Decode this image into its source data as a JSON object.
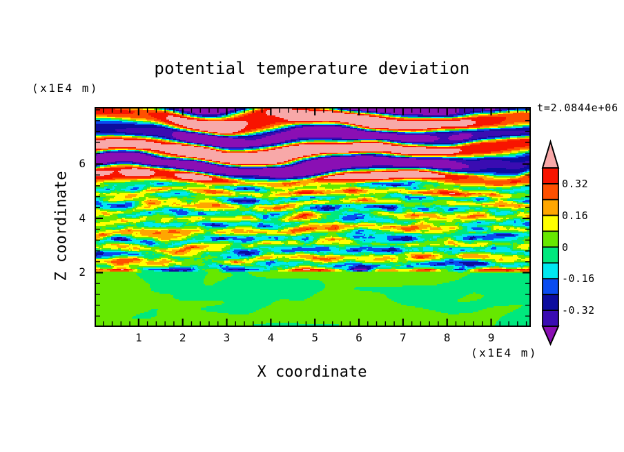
{
  "title": "potential temperature deviation",
  "time_label": "t=2.0844e+06",
  "x_axis": {
    "label": "X coordinate",
    "unit": "(x1E4 m)",
    "tick_labels": [
      "1",
      "2",
      "3",
      "4",
      "5",
      "6",
      "7",
      "8",
      "9"
    ],
    "major_ticks": [
      1,
      2,
      3,
      4,
      5,
      6,
      7,
      8,
      9
    ],
    "minor_step": 0.2,
    "range": [
      0,
      9.9
    ]
  },
  "z_axis": {
    "label": "Z coordinate",
    "unit": "(x1E4 m)",
    "tick_labels": [
      "2",
      "4",
      "6"
    ],
    "major_ticks": [
      2,
      4,
      6
    ],
    "minor_step": 0.4,
    "range": [
      0,
      8.1
    ]
  },
  "colorbar": {
    "tick_labels": [
      {
        "value": 0.32,
        "text": "0.32"
      },
      {
        "value": 0.16,
        "text": "0.16"
      },
      {
        "value": 0,
        "text": "0"
      },
      {
        "value": -0.16,
        "text": "-0.16"
      },
      {
        "value": -0.32,
        "text": "-0.32"
      }
    ]
  },
  "chart_data": {
    "type": "heatmap",
    "title": "potential temperature deviation",
    "xlabel": "X coordinate",
    "ylabel": "Z coordinate",
    "x_unit": "(x1E4 m)",
    "z_unit": "(x1E4 m)",
    "time_annotation": "t=2.0844e+06",
    "x_range": [
      0,
      9.9
    ],
    "z_range": [
      0,
      8.1
    ],
    "contour_interval": 0.08,
    "levels": [
      -0.4,
      -0.32,
      -0.24,
      -0.16,
      -0.08,
      0,
      0.08,
      0.16,
      0.24,
      0.32,
      0.4
    ],
    "colors": [
      "#8A0FB4",
      "#3A0CB2",
      "#0D0D9E",
      "#0A4CF0",
      "#00E8F0",
      "#00E87D",
      "#66E800",
      "#FFFF00",
      "#FFA600",
      "#FF5000",
      "#F81400",
      "#F8A8A8"
    ],
    "colorbar_labeled_levels": [
      0.32,
      0.16,
      0,
      -0.16,
      -0.32
    ],
    "legend_position": "right",
    "grid": false,
    "frame_color": "#000000",
    "background_color": "#ffffff",
    "field_regions": [
      {
        "z_range": [
          0,
          2
        ],
        "amplitude_range": [
          -0.08,
          0.08
        ],
        "description": "smooth large-scale near-zero blobs; spring-green and chartreuse swirls"
      },
      {
        "z_range": [
          2,
          5.3
        ],
        "amplitude_range": [
          -0.35,
          0.35
        ],
        "description": "fine-scale horizontally-stretched turbulence; yellow/cyan filaments with red and dark-blue patches; sharp multicolored interface at z=2"
      },
      {
        "z_range": [
          5.3,
          8.1
        ],
        "amplitude_range": [
          -0.55,
          0.55
        ],
        "description": "large-amplitude wavy bands alternating beyond +/-0.4 (pink / purple) with thin rainbow transition fringes"
      }
    ]
  }
}
